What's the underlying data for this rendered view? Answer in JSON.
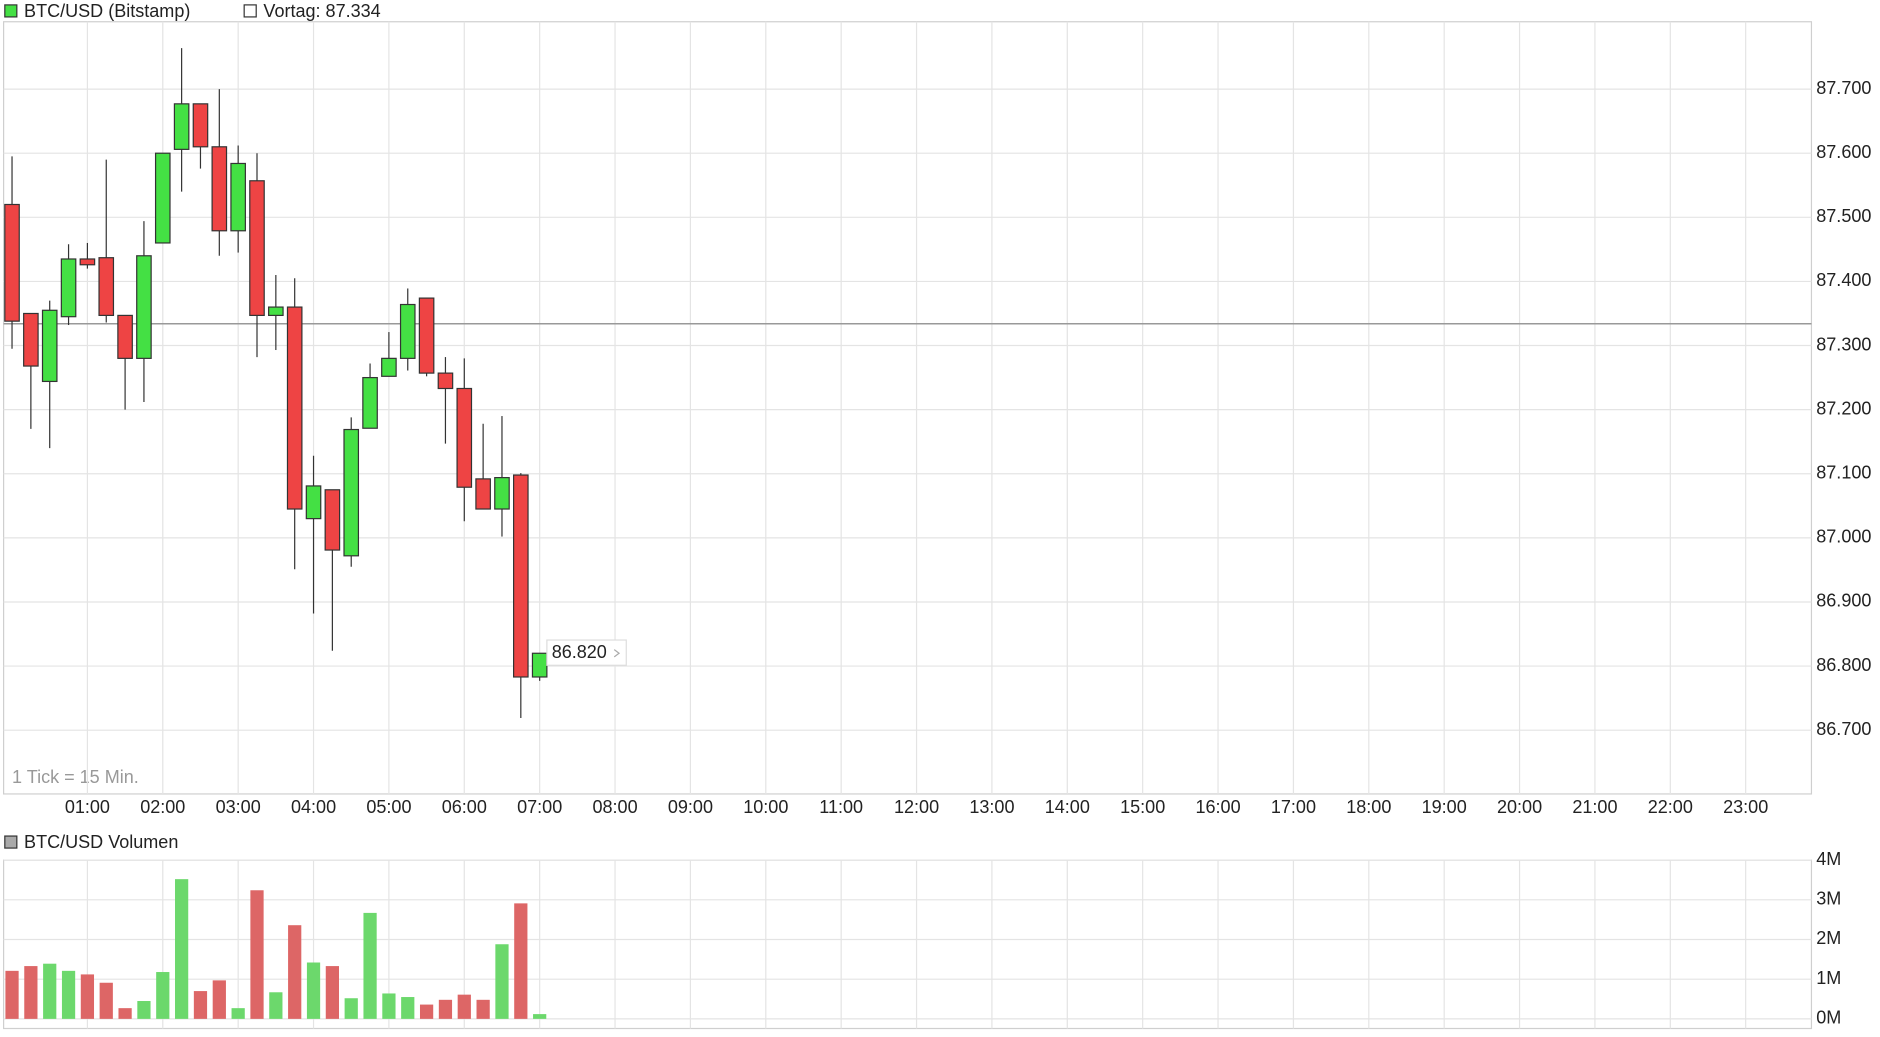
{
  "chart_data": [
    {
      "type": "candlestick",
      "note": "1 Tick = 15 Min.",
      "reference_line": {
        "value": 87.334,
        "label": "Vortag: 87.334",
        "color": "#999999"
      },
      "last_price": {
        "value": 86.82,
        "label": "86.820"
      },
      "x": [
        "00:00",
        "00:15",
        "00:30",
        "00:45",
        "01:00",
        "01:15",
        "01:30",
        "01:45",
        "02:00",
        "02:15",
        "02:30",
        "02:45",
        "03:00",
        "03:15",
        "03:30",
        "03:45",
        "04:00",
        "04:15",
        "04:30",
        "04:45",
        "05:00",
        "05:15",
        "05:30",
        "05:45",
        "06:00",
        "06:15",
        "06:30",
        "06:45",
        "07:00"
      ],
      "xlim": [
        "00:00",
        "24:00"
      ],
      "xticks": [
        "01:00",
        "02:00",
        "03:00",
        "04:00",
        "05:00",
        "06:00",
        "07:00",
        "08:00",
        "09:00",
        "10:00",
        "11:00",
        "12:00",
        "13:00",
        "14:00",
        "15:00",
        "16:00",
        "17:00",
        "18:00",
        "19:00",
        "20:00",
        "21:00",
        "22:00",
        "23:00"
      ],
      "ylim": [
        86.6,
        87.8
      ],
      "yticks": [
        {
          "value": 86.7,
          "label": "86.700"
        },
        {
          "value": 86.8,
          "label": "86.800"
        },
        {
          "value": 86.9,
          "label": "86.900"
        },
        {
          "value": 87.0,
          "label": "87.000"
        },
        {
          "value": 87.1,
          "label": "87.100"
        },
        {
          "value": 87.2,
          "label": "87.200"
        },
        {
          "value": 87.3,
          "label": "87.300"
        },
        {
          "value": 87.4,
          "label": "87.400"
        },
        {
          "value": 87.5,
          "label": "87.500"
        },
        {
          "value": 87.6,
          "label": "87.600"
        },
        {
          "value": 87.7,
          "label": "87.700"
        }
      ],
      "grid": true,
      "up_color": "#44e044",
      "down_color": "#ee4444",
      "series": [
        {
          "name": "BTC/USD (Bitstamp)",
          "open": [
            87.52,
            87.35,
            87.244,
            87.345,
            87.435,
            87.437,
            87.347,
            87.28,
            87.46,
            87.606,
            87.677,
            87.61,
            87.479,
            87.557,
            87.347,
            87.36,
            87.03,
            87.075,
            86.972,
            87.171,
            87.252,
            87.28,
            87.374,
            87.257,
            87.233,
            87.092,
            87.045,
            87.098,
            86.783
          ],
          "high": [
            87.595,
            87.35,
            87.37,
            87.458,
            87.46,
            87.59,
            87.347,
            87.494,
            87.6,
            87.764,
            87.677,
            87.7,
            87.612,
            87.6,
            87.41,
            87.405,
            87.128,
            87.075,
            87.188,
            87.272,
            87.321,
            87.389,
            87.374,
            87.282,
            87.28,
            87.178,
            87.19,
            87.101,
            86.82
          ],
          "low": [
            87.295,
            87.17,
            87.14,
            87.332,
            87.42,
            87.336,
            87.2,
            87.212,
            87.46,
            87.54,
            87.576,
            87.44,
            87.445,
            87.282,
            87.293,
            86.951,
            86.882,
            86.824,
            86.955,
            87.171,
            87.252,
            87.261,
            87.252,
            87.147,
            87.026,
            87.045,
            87.002,
            86.719,
            86.777
          ],
          "close": [
            87.338,
            87.268,
            87.355,
            87.435,
            87.426,
            87.347,
            87.28,
            87.44,
            87.6,
            87.677,
            87.61,
            87.479,
            87.584,
            87.347,
            87.36,
            87.045,
            87.081,
            86.981,
            87.169,
            87.25,
            87.28,
            87.364,
            87.257,
            87.233,
            87.079,
            87.045,
            87.094,
            86.783,
            86.82
          ]
        }
      ]
    },
    {
      "type": "bar",
      "title": "BTC/USD Volumen",
      "x": [
        "00:00",
        "00:15",
        "00:30",
        "00:45",
        "01:00",
        "01:15",
        "01:30",
        "01:45",
        "02:00",
        "02:15",
        "02:30",
        "02:45",
        "03:00",
        "03:15",
        "03:30",
        "03:45",
        "04:00",
        "04:15",
        "04:30",
        "04:45",
        "05:00",
        "05:15",
        "05:30",
        "05:45",
        "06:00",
        "06:15",
        "06:30",
        "06:45",
        "07:00"
      ],
      "values": [
        1210000,
        1330000,
        1390000,
        1210000,
        1120000,
        910000,
        270000,
        450000,
        1180000,
        3520000,
        700000,
        970000,
        270000,
        3240000,
        670000,
        2360000,
        1420000,
        1330000,
        520000,
        2670000,
        640000,
        550000,
        360000,
        480000,
        610000,
        480000,
        1880000,
        2910000,
        120000
      ],
      "ylim": [
        0,
        4000000
      ],
      "yticks": [
        {
          "value": 0,
          "label": "0M"
        },
        {
          "value": 1000000,
          "label": "1M"
        },
        {
          "value": 2000000,
          "label": "2M"
        },
        {
          "value": 3000000,
          "label": "3M"
        },
        {
          "value": 4000000,
          "label": "4M"
        }
      ],
      "grid": true,
      "up_color": "#6cd86c",
      "down_color": "#dd6666"
    }
  ]
}
